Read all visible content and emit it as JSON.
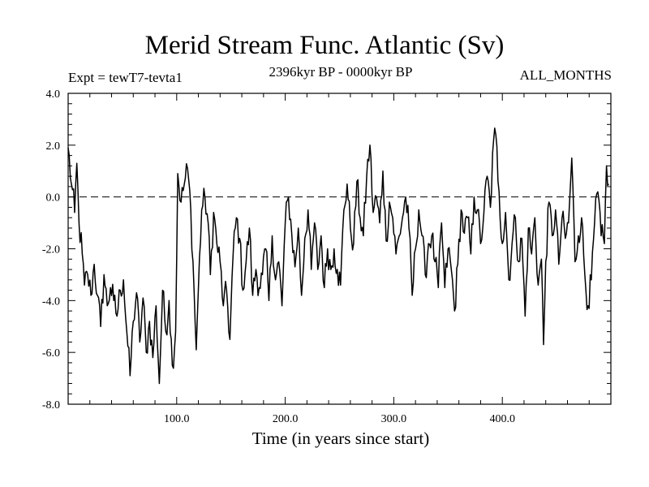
{
  "chart_data": {
    "type": "line",
    "title": "Merid Stream Func. Atlantic (Sv)",
    "expt_label": "Expt = tewT7-tevta1",
    "period_label": "2396kyr BP - 0000kyr BP",
    "months_label": "ALL_MONTHS",
    "xlabel": "Time (in years since start)",
    "ylabel": "",
    "xlim": [
      0,
      500
    ],
    "ylim": [
      -8,
      4
    ],
    "xticks": [
      100,
      200,
      300,
      400
    ],
    "xtick_labels": [
      "100.0",
      "200.0",
      "300.0",
      "400.0"
    ],
    "yticks": [
      4,
      2,
      0,
      -2,
      -4,
      -6,
      -8
    ],
    "ytick_labels": [
      "4.0",
      "2.0",
      "0.0",
      "-2.0",
      "-4.0",
      "-6.0",
      "-8.0"
    ],
    "reference_line": 0,
    "anchors": [
      [
        0,
        1.9
      ],
      [
        3,
        0.5
      ],
      [
        6,
        -0.6
      ],
      [
        8,
        1.3
      ],
      [
        10,
        -1.0
      ],
      [
        13,
        -2.2
      ],
      [
        15,
        -3.4
      ],
      [
        18,
        -3.0
      ],
      [
        21,
        -3.8
      ],
      [
        24,
        -2.6
      ],
      [
        27,
        -3.8
      ],
      [
        30,
        -5.0
      ],
      [
        33,
        -3.0
      ],
      [
        36,
        -4.2
      ],
      [
        39,
        -3.5
      ],
      [
        42,
        -4.0
      ],
      [
        45,
        -4.6
      ],
      [
        48,
        -3.6
      ],
      [
        51,
        -3.2
      ],
      [
        54,
        -5.2
      ],
      [
        57,
        -6.9
      ],
      [
        60,
        -4.8
      ],
      [
        63,
        -3.7
      ],
      [
        66,
        -5.6
      ],
      [
        69,
        -3.9
      ],
      [
        72,
        -6.0
      ],
      [
        75,
        -4.8
      ],
      [
        78,
        -6.2
      ],
      [
        81,
        -4.2
      ],
      [
        84,
        -7.2
      ],
      [
        87,
        -3.6
      ],
      [
        90,
        -5.2
      ],
      [
        93,
        -4.0
      ],
      [
        96,
        -6.5
      ],
      [
        99,
        -5.2
      ],
      [
        101,
        0.9
      ],
      [
        104,
        -0.2
      ],
      [
        107,
        0.5
      ],
      [
        110,
        1.1
      ],
      [
        113,
        -0.5
      ],
      [
        115,
        -2.5
      ],
      [
        118,
        -5.9
      ],
      [
        120,
        -3.5
      ],
      [
        123,
        -0.5
      ],
      [
        126,
        0.0
      ],
      [
        129,
        -1.0
      ],
      [
        131,
        -3.0
      ],
      [
        134,
        -0.6
      ],
      [
        137,
        -1.8
      ],
      [
        140,
        -2.5
      ],
      [
        143,
        -4.2
      ],
      [
        146,
        -3.6
      ],
      [
        149,
        -5.5
      ],
      [
        152,
        -2.2
      ],
      [
        155,
        -0.8
      ],
      [
        158,
        -1.6
      ],
      [
        161,
        -3.6
      ],
      [
        164,
        -2.5
      ],
      [
        167,
        -1.2
      ],
      [
        170,
        -3.8
      ],
      [
        173,
        -2.8
      ],
      [
        176,
        -3.5
      ],
      [
        179,
        -3.0
      ],
      [
        182,
        -2.0
      ],
      [
        185,
        -4.0
      ],
      [
        188,
        -1.5
      ],
      [
        191,
        -3.2
      ],
      [
        194,
        -2.5
      ],
      [
        197,
        -4.2
      ],
      [
        200,
        -1.0
      ],
      [
        203,
        0.0
      ],
      [
        206,
        -1.4
      ],
      [
        209,
        -2.7
      ],
      [
        212,
        -1.2
      ],
      [
        215,
        -3.8
      ],
      [
        218,
        -1.6
      ],
      [
        221,
        -0.5
      ],
      [
        224,
        -2.8
      ],
      [
        227,
        -1.0
      ],
      [
        230,
        -2.8
      ],
      [
        233,
        -1.5
      ],
      [
        236,
        -3.5
      ],
      [
        239,
        -2.0
      ],
      [
        242,
        -2.8
      ],
      [
        245,
        -2.0
      ],
      [
        248,
        -2.8
      ],
      [
        251,
        -3.4
      ],
      [
        254,
        -0.5
      ],
      [
        257,
        0.5
      ],
      [
        260,
        -1.2
      ],
      [
        263,
        -1.8
      ],
      [
        266,
        0.6
      ],
      [
        269,
        -0.8
      ],
      [
        272,
        -1.5
      ],
      [
        275,
        0.8
      ],
      [
        278,
        2.0
      ],
      [
        281,
        -0.6
      ],
      [
        284,
        0.0
      ],
      [
        287,
        -1.0
      ],
      [
        290,
        1.0
      ],
      [
        293,
        -1.7
      ],
      [
        296,
        -0.2
      ],
      [
        299,
        -0.8
      ],
      [
        302,
        -2.2
      ],
      [
        305,
        -1.5
      ],
      [
        308,
        -0.8
      ],
      [
        311,
        0.0
      ],
      [
        314,
        -1.2
      ],
      [
        317,
        -3.8
      ],
      [
        320,
        -2.0
      ],
      [
        323,
        -0.5
      ],
      [
        326,
        -1.5
      ],
      [
        329,
        -3.0
      ],
      [
        332,
        -1.8
      ],
      [
        335,
        -1.5
      ],
      [
        338,
        -2.5
      ],
      [
        341,
        -3.5
      ],
      [
        344,
        -1.0
      ],
      [
        347,
        -3.5
      ],
      [
        350,
        -2.0
      ],
      [
        353,
        -2.8
      ],
      [
        356,
        -4.4
      ],
      [
        359,
        -2.6
      ],
      [
        362,
        -0.5
      ],
      [
        365,
        -1.4
      ],
      [
        368,
        -0.8
      ],
      [
        371,
        -2.2
      ],
      [
        374,
        0.0
      ],
      [
        377,
        -0.5
      ],
      [
        380,
        -1.8
      ],
      [
        383,
        -0.6
      ],
      [
        386,
        0.8
      ],
      [
        389,
        -0.4
      ],
      [
        392,
        2.2
      ],
      [
        394,
        2.4
      ],
      [
        397,
        0.2
      ],
      [
        400,
        -1.8
      ],
      [
        403,
        -0.6
      ],
      [
        406,
        -3.2
      ],
      [
        409,
        -1.8
      ],
      [
        412,
        -0.8
      ],
      [
        415,
        -2.5
      ],
      [
        418,
        -1.6
      ],
      [
        421,
        -4.6
      ],
      [
        424,
        -1.2
      ],
      [
        427,
        -2.2
      ],
      [
        430,
        -0.8
      ],
      [
        433,
        -3.4
      ],
      [
        436,
        -2.4
      ],
      [
        438,
        -5.7
      ],
      [
        440,
        -2.5
      ],
      [
        443,
        -0.2
      ],
      [
        446,
        -1.5
      ],
      [
        449,
        -0.5
      ],
      [
        452,
        -2.6
      ],
      [
        455,
        -0.8
      ],
      [
        458,
        -1.6
      ],
      [
        461,
        -1.0
      ],
      [
        464,
        1.5
      ],
      [
        467,
        -2.5
      ],
      [
        470,
        -1.5
      ],
      [
        473,
        -0.8
      ],
      [
        476,
        -3.0
      ],
      [
        479,
        -4.2
      ],
      [
        482,
        -3.2
      ],
      [
        485,
        -1.0
      ],
      [
        488,
        0.2
      ],
      [
        491,
        -1.5
      ],
      [
        494,
        -1.8
      ],
      [
        496,
        1.2
      ],
      [
        498,
        0.5
      ]
    ]
  }
}
